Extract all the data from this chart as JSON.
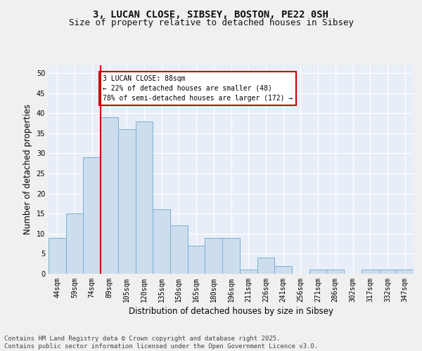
{
  "title_line1": "3, LUCAN CLOSE, SIBSEY, BOSTON, PE22 0SH",
  "title_line2": "Size of property relative to detached houses in Sibsey",
  "xlabel": "Distribution of detached houses by size in Sibsey",
  "ylabel": "Number of detached properties",
  "categories": [
    "44sqm",
    "59sqm",
    "74sqm",
    "89sqm",
    "105sqm",
    "120sqm",
    "135sqm",
    "150sqm",
    "165sqm",
    "180sqm",
    "196sqm",
    "211sqm",
    "226sqm",
    "241sqm",
    "256sqm",
    "271sqm",
    "286sqm",
    "302sqm",
    "317sqm",
    "332sqm",
    "347sqm"
  ],
  "values": [
    9,
    15,
    29,
    39,
    36,
    38,
    16,
    12,
    7,
    9,
    9,
    1,
    4,
    2,
    0,
    1,
    1,
    0,
    1,
    1,
    1
  ],
  "bar_color": "#ccdded",
  "bar_edge_color": "#7aafd4",
  "vline_color": "#cc0000",
  "annotation_text": "3 LUCAN CLOSE: 88sqm\n← 22% of detached houses are smaller (48)\n78% of semi-detached houses are larger (172) →",
  "annotation_box_color": "#cc0000",
  "ylim": [
    0,
    52
  ],
  "yticks": [
    0,
    5,
    10,
    15,
    20,
    25,
    30,
    35,
    40,
    45,
    50
  ],
  "background_color": "#e8eef8",
  "grid_color": "#ffffff",
  "footer_text": "Contains HM Land Registry data © Crown copyright and database right 2025.\nContains public sector information licensed under the Open Government Licence v3.0.",
  "title_fontsize": 10,
  "subtitle_fontsize": 9,
  "tick_fontsize": 7,
  "label_fontsize": 8.5,
  "footer_fontsize": 6.5,
  "fig_facecolor": "#f0f0f0"
}
